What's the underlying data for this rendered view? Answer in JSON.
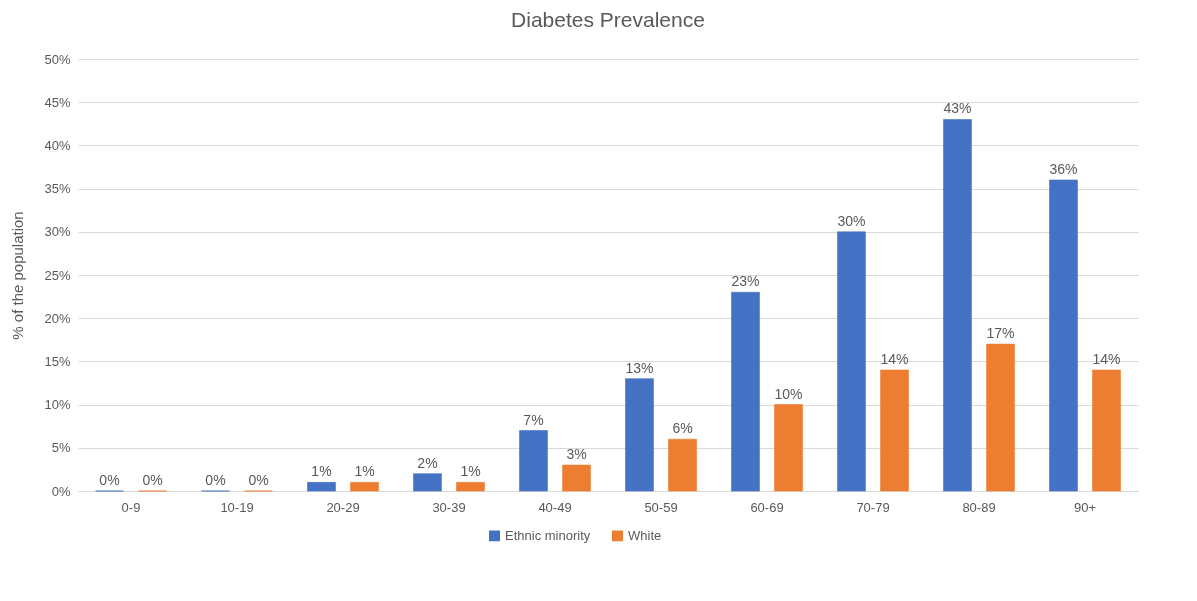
{
  "chart_data": {
    "type": "bar",
    "title": "Diabetes Prevalence",
    "ylabel": "% of the population",
    "categories": [
      "0-9",
      "10-19",
      "20-29",
      "30-39",
      "40-49",
      "50-59",
      "60-69",
      "70-79",
      "80-89",
      "90+"
    ],
    "series": [
      {
        "name": "Ethnic minority",
        "color": "#4472c4",
        "values": [
          0,
          0,
          1,
          2,
          7,
          13,
          23,
          30,
          43,
          36
        ],
        "value_labels": [
          "0%",
          "0%",
          "1%",
          "2%",
          "7%",
          "13%",
          "23%",
          "30%",
          "43%",
          "36%"
        ]
      },
      {
        "name": "White",
        "color": "#ed7d31",
        "values": [
          0,
          0,
          1,
          1,
          3,
          6,
          10,
          14,
          17,
          14
        ],
        "value_labels": [
          "0%",
          "0%",
          "1%",
          "1%",
          "3%",
          "6%",
          "10%",
          "14%",
          "17%",
          "14%"
        ]
      }
    ],
    "ylim": [
      0,
      50
    ],
    "yticks": [
      {
        "value": 0,
        "label": "0%"
      },
      {
        "value": 5,
        "label": "5%"
      },
      {
        "value": 10,
        "label": "10%"
      },
      {
        "value": 15,
        "label": "15%"
      },
      {
        "value": 20,
        "label": "20%"
      },
      {
        "value": 25,
        "label": "25%"
      },
      {
        "value": 30,
        "label": "30%"
      },
      {
        "value": 35,
        "label": "35%"
      },
      {
        "value": 40,
        "label": "40%"
      },
      {
        "value": 45,
        "label": "45%"
      },
      {
        "value": 50,
        "label": "50%"
      }
    ],
    "grid": "y",
    "legend": "bottom"
  }
}
